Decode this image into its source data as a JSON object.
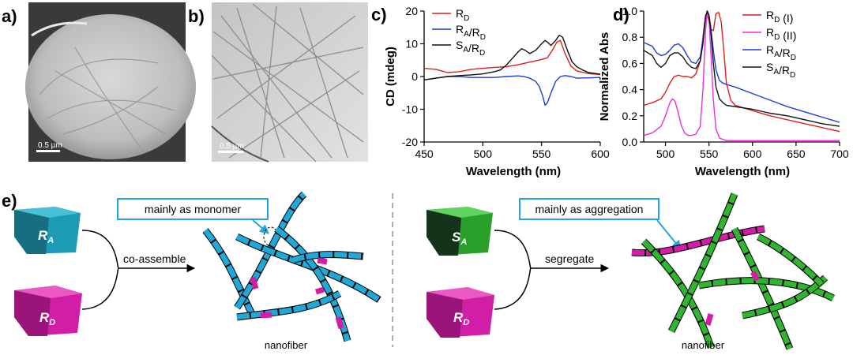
{
  "panels": {
    "a": "a)",
    "b": "b)",
    "c": "c)",
    "d": "d)",
    "e": "e)"
  },
  "scalebars": {
    "a": "0.5 µm",
    "b": "0.5 µm"
  },
  "colors": {
    "red": "#e0201a",
    "blue": "#1c3fd6",
    "black": "#111111",
    "magenta": "#ee2ee0",
    "cyan": "#1fa8d8",
    "teal": "#1d8aa0",
    "green": "#2fb52f",
    "pink": "#d61ba8"
  },
  "chart_data": [
    {
      "type": "line",
      "xlabel": "Wavelength (nm)",
      "ylabel": "CD (mdeg)",
      "xlim": [
        450,
        600
      ],
      "ylim": [
        -20,
        20
      ],
      "xticks": [
        "450",
        "500",
        "550",
        "600"
      ],
      "yticks": [
        "20",
        "10",
        "0",
        "-10",
        "-20"
      ],
      "legend": [
        {
          "main": "R",
          "sub": "D"
        },
        {
          "main": "R",
          "sub": "A",
          "mid": "/R",
          "sub2": "D"
        },
        {
          "main": "S",
          "sub": "A",
          "mid": "/R",
          "sub2": "D"
        }
      ],
      "series": [
        {
          "name": "R_D",
          "color": "#e0201a",
          "x": [
            450,
            460,
            470,
            480,
            490,
            500,
            510,
            520,
            530,
            540,
            545,
            550,
            555,
            560,
            563,
            566,
            570,
            575,
            580,
            590,
            600
          ],
          "y": [
            2.5,
            2.2,
            1.2,
            1.5,
            2.2,
            2.5,
            2.8,
            3,
            3.6,
            4.4,
            4.8,
            5.2,
            5.7,
            8.5,
            10.5,
            11,
            7,
            3.2,
            1.7,
            0.9,
            0.6
          ]
        },
        {
          "name": "R_A/R_D",
          "color": "#1c3fd6",
          "x": [
            450,
            460,
            470,
            480,
            490,
            500,
            510,
            520,
            530,
            535,
            540,
            545,
            548,
            551,
            553,
            555,
            558,
            562,
            566,
            570,
            575,
            580,
            590,
            600
          ],
          "y": [
            -1,
            -0.5,
            0,
            0,
            -0.3,
            -0.3,
            -0.3,
            0,
            0.2,
            0,
            -0.5,
            -1.5,
            -3,
            -6,
            -8.8,
            -8,
            -5,
            -1.5,
            0,
            0.3,
            0,
            -0.5,
            -0.4,
            -0.3
          ]
        },
        {
          "name": "S_A/R_D",
          "color": "#111111",
          "x": [
            450,
            460,
            470,
            480,
            490,
            500,
            510,
            515,
            520,
            525,
            530,
            533,
            536,
            540,
            545,
            550,
            553,
            555,
            558,
            562,
            565,
            568,
            572,
            576,
            580,
            585,
            590,
            600
          ],
          "y": [
            -1,
            -0.5,
            0,
            0.3,
            0.5,
            0.8,
            1.5,
            2,
            3.5,
            5.5,
            7.5,
            8.5,
            8,
            7,
            8,
            10,
            11,
            10.5,
            9.5,
            11,
            12.6,
            12,
            8,
            4.5,
            3,
            2,
            1.2,
            0.7
          ]
        }
      ]
    },
    {
      "type": "line",
      "xlabel": "Wavelength (nm)",
      "ylabel": "Normalized Abs",
      "xlim": [
        475,
        700
      ],
      "ylim": [
        0,
        1
      ],
      "xticks": [
        "500",
        "550",
        "600",
        "650",
        "700"
      ],
      "yticks": [
        "1.0",
        "0.8",
        "0.6",
        "0.4",
        "0.2",
        "0.0"
      ],
      "legend": [
        {
          "main": "R",
          "sub": "D",
          "suffix": " (I)"
        },
        {
          "main": "R",
          "sub": "D",
          "suffix": " (II)"
        },
        {
          "main": "R",
          "sub": "A",
          "mid": "/R",
          "sub2": "D"
        },
        {
          "main": "S",
          "sub": "A",
          "mid": "/R",
          "sub2": "D"
        }
      ],
      "series": [
        {
          "name": "R_D (I)",
          "color": "#e0201a",
          "x": [
            475,
            485,
            495,
            500,
            505,
            510,
            515,
            520,
            525,
            530,
            535,
            540,
            543,
            546,
            549,
            552,
            555,
            558,
            561,
            564,
            567,
            570,
            575,
            580,
            590,
            600,
            620,
            640,
            660,
            680,
            700
          ],
          "y": [
            0.28,
            0.3,
            0.33,
            0.38,
            0.45,
            0.5,
            0.51,
            0.5,
            0.5,
            0.49,
            0.52,
            0.62,
            0.8,
            0.97,
            0.95,
            0.86,
            0.85,
            0.98,
            0.99,
            0.92,
            0.7,
            0.45,
            0.32,
            0.28,
            0.26,
            0.24,
            0.2,
            0.17,
            0.14,
            0.11,
            0.08
          ]
        },
        {
          "name": "R_D (II)",
          "color": "#ee2ee0",
          "x": [
            475,
            485,
            495,
            500,
            505,
            508,
            511,
            514,
            518,
            522,
            526,
            530,
            535,
            540,
            543,
            546,
            548,
            550,
            552,
            555,
            558,
            562,
            566,
            570,
            580,
            600,
            650,
            700
          ],
          "y": [
            0.05,
            0.07,
            0.12,
            0.2,
            0.3,
            0.33,
            0.31,
            0.24,
            0.13,
            0.07,
            0.05,
            0.05,
            0.06,
            0.12,
            0.4,
            0.85,
            1,
            0.95,
            0.7,
            0.32,
            0.1,
            0.03,
            0.02,
            0.01,
            0.01,
            0.01,
            0.01,
            0.01
          ]
        },
        {
          "name": "R_A/R_D",
          "color": "#1c3fd6",
          "x": [
            475,
            485,
            490,
            495,
            500,
            505,
            510,
            515,
            520,
            525,
            530,
            535,
            540,
            543,
            546,
            548,
            550,
            552,
            555,
            558,
            562,
            566,
            570,
            580,
            600,
            620,
            640,
            660,
            680,
            700
          ],
          "y": [
            0.76,
            0.73,
            0.68,
            0.66,
            0.67,
            0.7,
            0.74,
            0.75,
            0.72,
            0.66,
            0.61,
            0.6,
            0.65,
            0.78,
            0.96,
            1,
            0.97,
            0.88,
            0.7,
            0.55,
            0.47,
            0.45,
            0.44,
            0.42,
            0.37,
            0.32,
            0.27,
            0.23,
            0.19,
            0.15
          ]
        },
        {
          "name": "S_A/R_D",
          "color": "#111111",
          "x": [
            475,
            485,
            490,
            495,
            500,
            505,
            510,
            515,
            520,
            525,
            530,
            535,
            540,
            543,
            546,
            548,
            550,
            552,
            555,
            558,
            562,
            566,
            570,
            580,
            600,
            620,
            640,
            660,
            680,
            700
          ],
          "y": [
            0.7,
            0.66,
            0.6,
            0.57,
            0.6,
            0.66,
            0.68,
            0.68,
            0.65,
            0.6,
            0.57,
            0.56,
            0.62,
            0.75,
            0.95,
            1,
            0.96,
            0.85,
            0.6,
            0.42,
            0.33,
            0.3,
            0.28,
            0.27,
            0.25,
            0.22,
            0.2,
            0.17,
            0.14,
            0.12
          ]
        }
      ]
    }
  ],
  "schematic": {
    "left": {
      "block_top": {
        "main": "R",
        "sub": "A"
      },
      "block_bottom": {
        "main": "R",
        "sub": "D"
      },
      "process": "co-assemble",
      "callout": "mainly as monomer",
      "caption": "nanofiber"
    },
    "right": {
      "block_top": {
        "main": "S",
        "sub": "A"
      },
      "block_bottom": {
        "main": "R",
        "sub": "D"
      },
      "process": "segregate",
      "callout": "mainly as aggregation",
      "caption": "nanofiber"
    }
  }
}
